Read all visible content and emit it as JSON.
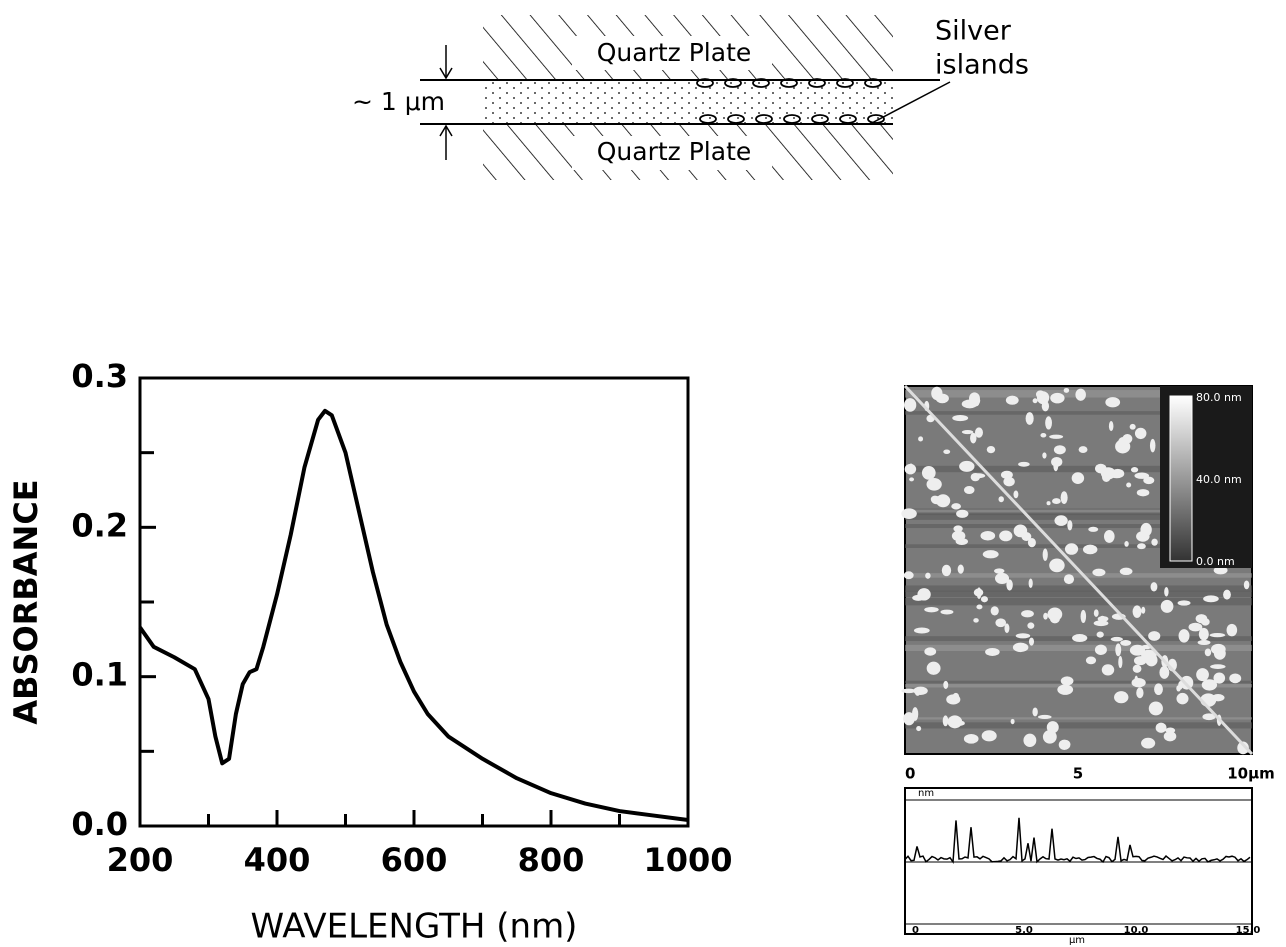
{
  "diagram": {
    "top_plate": "Quartz Plate",
    "bottom_plate": "Quartz Plate",
    "islands_label": [
      "Silver",
      "islands"
    ],
    "gap_label": "~ 1 μm"
  },
  "chart_data": {
    "type": "line",
    "xlabel": "WAVELENGTH (nm)",
    "ylabel": "ABSORBANCE",
    "color": "#000000",
    "x": [
      200,
      220,
      250,
      280,
      300,
      310,
      320,
      330,
      340,
      350,
      360,
      370,
      380,
      400,
      420,
      440,
      460,
      470,
      480,
      500,
      520,
      540,
      560,
      580,
      600,
      620,
      650,
      700,
      750,
      800,
      850,
      900,
      950,
      1000
    ],
    "values": [
      0.133,
      0.12,
      0.113,
      0.105,
      0.085,
      0.06,
      0.042,
      0.045,
      0.075,
      0.095,
      0.103,
      0.105,
      0.12,
      0.155,
      0.195,
      0.24,
      0.272,
      0.278,
      0.275,
      0.25,
      0.21,
      0.17,
      0.135,
      0.11,
      0.09,
      0.075,
      0.06,
      0.045,
      0.032,
      0.022,
      0.015,
      0.01,
      0.007,
      0.004
    ],
    "xlim": [
      200,
      1000
    ],
    "xticks": [
      200,
      400,
      600,
      800,
      1000
    ],
    "xminor": [
      300,
      500,
      700,
      900
    ],
    "ylim": [
      0,
      0.3
    ],
    "yticks": [
      {
        "value": 0,
        "label": "0.0"
      },
      0.1,
      0.2,
      0.3
    ],
    "yminor": [
      0.05,
      0.15,
      0.25
    ]
  },
  "afm": {
    "scale": [
      "80.0 nm",
      "40.0 nm",
      "0.0 nm"
    ],
    "axis": [
      "0",
      "5",
      "10μm"
    ],
    "profile_unit": "nm",
    "profile_axis": [
      "0",
      "5.0",
      "10.0",
      "15.0"
    ],
    "profile_xunit": "μm"
  }
}
